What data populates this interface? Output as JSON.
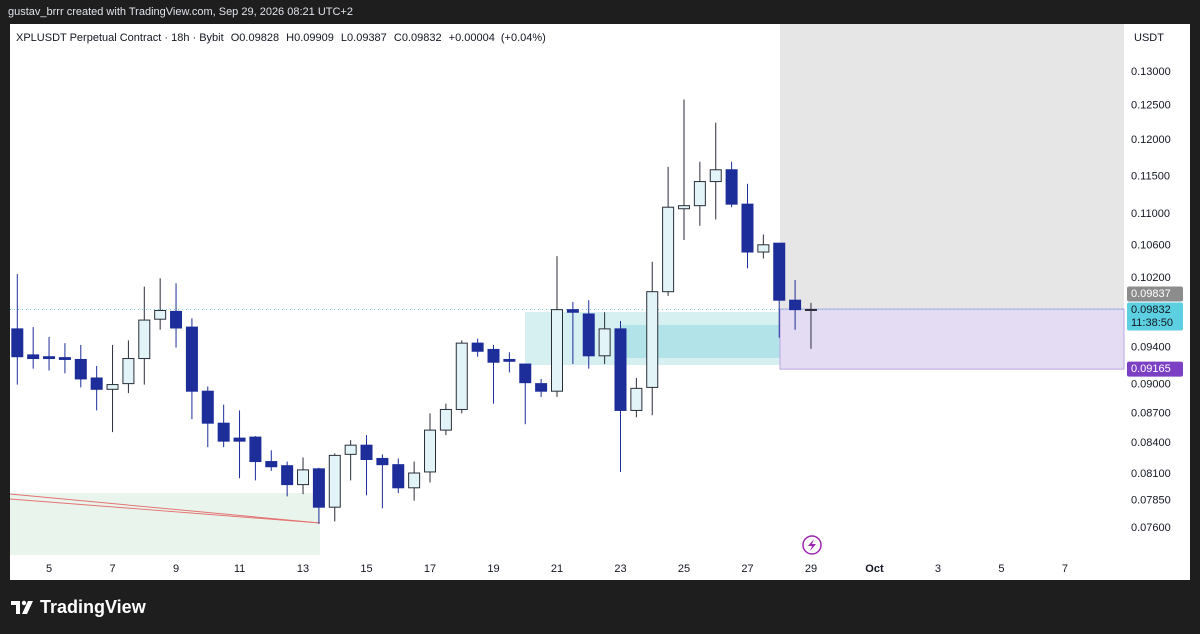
{
  "attribution": "gustav_brrr created with TradingView.com, Sep 29, 2026 08:21 UTC+2",
  "footer": {
    "brand": "TradingView"
  },
  "chart_data": {
    "type": "candlestick",
    "title": "XPLUSDT Perpetual Contract · 18h · Bybit",
    "ohlc_letters": [
      "O",
      "H",
      "L",
      "C"
    ],
    "change": "+0.00004",
    "change_pct": "(+0.04%)",
    "currency": "USDT",
    "log_scale": true,
    "grid": false,
    "up_color": "#e3f4f8",
    "up_border": "#2a2e39",
    "down_color": "#1d2d99",
    "x": [
      4,
      4.5,
      5,
      5.5,
      6,
      6.5,
      7,
      7.5,
      8,
      8.5,
      9,
      9.5,
      10,
      10.5,
      11,
      11.5,
      12,
      12.5,
      13,
      13.5,
      14,
      14.5,
      15,
      15.5,
      16,
      16.5,
      17,
      17.5,
      18,
      18.5,
      19,
      19.5,
      20,
      20.5,
      21,
      21.5,
      22,
      22.5,
      23,
      23.5,
      24,
      24.5,
      25,
      25.5,
      26,
      26.5,
      27,
      27.5,
      28,
      28.5,
      29
    ],
    "open": [
      0.0961,
      0.0932,
      0.093,
      0.0929,
      0.0927,
      0.0907,
      0.0895,
      0.0901,
      0.0928,
      0.0972,
      0.0981,
      0.0963,
      0.0893,
      0.086,
      0.0845,
      0.0846,
      0.0822,
      0.0818,
      0.08,
      0.0815,
      0.0779,
      0.0829,
      0.0838,
      0.0825,
      0.0819,
      0.0797,
      0.0812,
      0.0853,
      0.0874,
      0.0945,
      0.0938,
      0.0927,
      0.0922,
      0.0901,
      0.0893,
      0.0983,
      0.0978,
      0.0931,
      0.0961,
      0.0873,
      0.0897,
      0.1004,
      0.1107,
      0.1111,
      0.1143,
      0.1159,
      0.1113,
      0.1052,
      0.1063,
      0.0994,
      0.09828
    ],
    "high": [
      0.1025,
      0.0963,
      0.0952,
      0.0945,
      0.0943,
      0.092,
      0.0943,
      0.0948,
      0.101,
      0.102,
      0.1014,
      0.0973,
      0.0898,
      0.0879,
      0.0873,
      0.0847,
      0.0833,
      0.0822,
      0.0826,
      0.0816,
      0.083,
      0.0843,
      0.0848,
      0.0829,
      0.0825,
      0.0822,
      0.087,
      0.088,
      0.0948,
      0.095,
      0.0943,
      0.0935,
      0.0922,
      0.0906,
      0.1047,
      0.0992,
      0.0994,
      0.098,
      0.097,
      0.0907,
      0.104,
      0.1163,
      0.1259,
      0.117,
      0.1225,
      0.117,
      0.114,
      0.1074,
      0.1063,
      0.1018,
      0.09909
    ],
    "low": [
      0.09,
      0.0917,
      0.0915,
      0.0912,
      0.0897,
      0.0873,
      0.0851,
      0.0891,
      0.09,
      0.096,
      0.094,
      0.0864,
      0.0836,
      0.0836,
      0.0806,
      0.0804,
      0.0813,
      0.0789,
      0.0791,
      0.0764,
      0.0766,
      0.0804,
      0.079,
      0.0778,
      0.0792,
      0.0785,
      0.0802,
      0.0848,
      0.087,
      0.093,
      0.088,
      0.0913,
      0.0859,
      0.0887,
      0.0887,
      0.0922,
      0.0917,
      0.0922,
      0.0812,
      0.0866,
      0.0868,
      0.0999,
      0.1067,
      0.1085,
      0.1093,
      0.1109,
      0.1032,
      0.1044,
      0.0951,
      0.096,
      0.09387
    ],
    "close": [
      0.093,
      0.0928,
      0.0928,
      0.0927,
      0.0906,
      0.0895,
      0.09,
      0.0928,
      0.0971,
      0.0982,
      0.0962,
      0.0893,
      0.086,
      0.0842,
      0.0842,
      0.0822,
      0.0817,
      0.08,
      0.0814,
      0.0779,
      0.0828,
      0.0838,
      0.0824,
      0.0819,
      0.0797,
      0.0811,
      0.0853,
      0.0874,
      0.0945,
      0.0936,
      0.0924,
      0.0925,
      0.0902,
      0.0893,
      0.0983,
      0.098,
      0.0931,
      0.0961,
      0.0873,
      0.0896,
      0.1004,
      0.1109,
      0.1111,
      0.1143,
      0.1159,
      0.1113,
      0.1052,
      0.1061,
      0.0994,
      0.0983,
      0.09832
    ],
    "xlim": [
      3.77,
      38.86
    ],
    "xticks": [
      5,
      7,
      9,
      11,
      13,
      15,
      17,
      19,
      21,
      23,
      25,
      27,
      29,
      {
        "value": 31,
        "label": "Oct"
      },
      {
        "value": 33,
        "label": "3"
      },
      {
        "value": 35,
        "label": "5"
      },
      {
        "value": 37,
        "label": "7"
      }
    ],
    "ylim": [
      0.0715,
      0.1376
    ],
    "yticks": [
      {
        "value": 0.13,
        "label": "0.13000"
      },
      {
        "value": 0.125,
        "label": "0.12500"
      },
      {
        "value": 0.12,
        "label": "0.12000"
      },
      {
        "value": 0.115,
        "label": "0.11500"
      },
      {
        "value": 0.11,
        "label": "0.11000"
      },
      {
        "value": 0.106,
        "label": "0.10600"
      },
      {
        "value": 0.102,
        "label": "0.10200"
      },
      {
        "value": 0.094,
        "label": "0.09400"
      },
      {
        "value": 0.09,
        "label": "0.09000"
      },
      {
        "value": 0.087,
        "label": "0.08700"
      },
      {
        "value": 0.084,
        "label": "0.08400"
      },
      {
        "value": 0.081,
        "label": "0.08100"
      },
      {
        "value": 0.0785,
        "label": "0.07850"
      },
      {
        "value": 0.076,
        "label": "0.07600"
      }
    ],
    "price_labels": [
      {
        "value": 0.09832,
        "countdown": "11:38:50",
        "color": "#5ccfe0",
        "text_color": "#131722"
      },
      {
        "value": 0.09837,
        "color": "#8c8c8c",
        "text_color": "#ffffff"
      },
      {
        "value": 0.09165,
        "color": "#7b3fc4",
        "text_color": "#ffffff"
      }
    ]
  }
}
